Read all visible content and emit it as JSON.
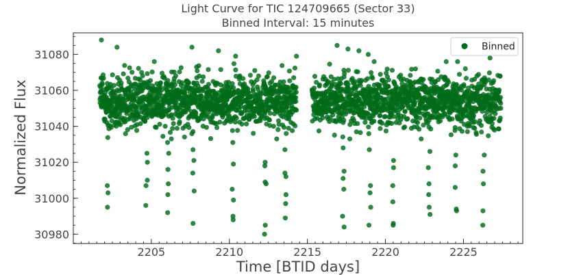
{
  "chart_data": {
    "type": "scatter",
    "title": "Light Curve for TIC 124709665 (Sector 33)",
    "subtitle": "Binned Interval: 15 minutes",
    "xlabel": "Time [BTID days]",
    "ylabel": "Normalized Flux",
    "xlim": [
      2200.0,
      2228.8
    ],
    "ylim": [
      30974.8,
      31092.0
    ],
    "xticks": [
      2205,
      2210,
      2215,
      2220,
      2225
    ],
    "yticks": [
      30980,
      31000,
      31020,
      31040,
      31060,
      31080
    ],
    "x_minor_step": 0.5,
    "y_minor_step": 5,
    "grid": false,
    "legend_position": "top-right",
    "color": "#006b1a",
    "series": [
      {
        "name": "Binned",
        "segments": [
          {
            "x_start": 2201.7,
            "x_end": 2214.3
          },
          {
            "x_start": 2215.3,
            "x_end": 2227.4
          }
        ],
        "baseline": 31054,
        "scatter": 9,
        "dips": [
          {
            "x": 2202.2,
            "values": [
              31007,
              31003,
              30995
            ]
          },
          {
            "x": 2204.7,
            "values": [
              31025,
              31020,
              31010,
              31007,
              30996
            ]
          },
          {
            "x": 2206.1,
            "values": [
              31031,
              31025,
              31016,
              31008,
              31002,
              30992
            ]
          },
          {
            "x": 2207.7,
            "values": [
              31027,
              31021,
              31014,
              31004,
              30986
            ]
          },
          {
            "x": 2210.2,
            "values": [
              31031,
              31019,
              31005,
              30999,
              30990,
              30988
            ]
          },
          {
            "x": 2212.3,
            "values": [
              31020,
              31018,
              31009,
              31008,
              30985,
              30980
            ]
          },
          {
            "x": 2213.6,
            "values": [
              31036,
              31027,
              31014,
              31012,
              31002,
              30997,
              30989
            ]
          },
          {
            "x": 2217.3,
            "values": [
              31028,
              31015,
              31011,
              31005,
              30990,
              30984
            ]
          },
          {
            "x": 2219.0,
            "values": [
              31027,
              31007,
              31003,
              30995,
              30985
            ]
          },
          {
            "x": 2220.5,
            "values": [
              31021,
              31017,
              31007,
              30998,
              30986,
              30985
            ]
          },
          {
            "x": 2222.8,
            "values": [
              31026,
              31017,
              31008,
              31002,
              30995,
              30991
            ]
          },
          {
            "x": 2224.5,
            "values": [
              31024,
              31018,
              31006,
              30994,
              30993
            ]
          },
          {
            "x": 2226.3,
            "values": [
              31024,
              31015,
              31008,
              30993,
              30985
            ]
          }
        ],
        "outliers_high": [
          {
            "x": 2201.8,
            "y": 31088
          },
          {
            "x": 2202.8,
            "y": 31084
          },
          {
            "x": 2207.6,
            "y": 31084
          },
          {
            "x": 2209.3,
            "y": 31082
          },
          {
            "x": 2210.4,
            "y": 31079
          },
          {
            "x": 2214.3,
            "y": 31079
          },
          {
            "x": 2216.9,
            "y": 31085
          },
          {
            "x": 2217.6,
            "y": 31083
          },
          {
            "x": 2218.3,
            "y": 31082
          },
          {
            "x": 2218.9,
            "y": 31080
          },
          {
            "x": 2226.7,
            "y": 31078
          }
        ]
      }
    ]
  }
}
